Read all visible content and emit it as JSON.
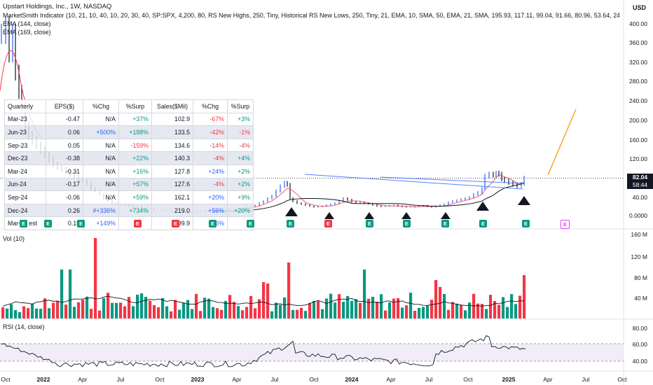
{
  "header": {
    "title": "Upstart Holdings, Inc., 1W, NASDAQ",
    "indicator": "MarketSmith Indicator (10, 21, 10, 40, 10, 20, 30, 40, SP:SPX, 4,200, 80, RS New Highs, 250, Tiny, Historical RS New Lows, 250, Tiny, 21, EMA, 10, SMA, 50, EMA, 21, SMA, 195.93, 117.11, 99.04, 91.66, 80.96, 53.64, 24.86, 9, 50, 65, 50, 65, normal, Ta",
    "ema144": "EMA (144, close)",
    "ema169": "EMA (169, close)"
  },
  "currency": "USD",
  "price_tag": {
    "price": "82.04",
    "countdown": "58:44"
  },
  "price_axis": [
    "400.00",
    "360.00",
    "320.00",
    "280.00",
    "240.00",
    "200.00",
    "160.00",
    "120.00",
    "80.00",
    "40.00",
    "0.0000"
  ],
  "volume_pane": {
    "title": "Vol (10)",
    "axis": [
      "160 M",
      "120 M",
      "80 M",
      "40 M"
    ]
  },
  "rsi_pane": {
    "title": "RSI (14, close)",
    "axis": [
      "80.00",
      "60.00",
      "40.00"
    ]
  },
  "time_axis": [
    {
      "label": "Oct",
      "bold": false
    },
    {
      "label": "2022",
      "bold": true
    },
    {
      "label": "Apr",
      "bold": false
    },
    {
      "label": "Jul",
      "bold": false
    },
    {
      "label": "Oct",
      "bold": false
    },
    {
      "label": "2023",
      "bold": true
    },
    {
      "label": "Apr",
      "bold": false
    },
    {
      "label": "Jul",
      "bold": false
    },
    {
      "label": "Oct",
      "bold": false
    },
    {
      "label": "2024",
      "bold": true
    },
    {
      "label": "Apr",
      "bold": false
    },
    {
      "label": "Jul",
      "bold": false
    },
    {
      "label": "Oct",
      "bold": false
    },
    {
      "label": "2025",
      "bold": true
    },
    {
      "label": "Apr",
      "bold": false
    },
    {
      "label": "Jul",
      "bold": false
    },
    {
      "label": "Oct",
      "bold": false
    }
  ],
  "fundamentals": {
    "headers": [
      "Quarterly",
      "EPS($)",
      "%Chg",
      "%Surp",
      "Sales($Mil)",
      "%Chg",
      "%Surp"
    ],
    "rows": [
      {
        "q": "Mar-23",
        "eps": "-0.47",
        "eps_chg": "N/A",
        "eps_chg_c": "plain",
        "eps_surp": "+37%",
        "eps_surp_c": "pos",
        "sales": "102.9",
        "sales_chg": "-67%",
        "sales_chg_c": "neg",
        "sales_surp": "+3%",
        "sales_surp_c": "pos"
      },
      {
        "q": "Jun-23",
        "eps": "0.06",
        "eps_chg": "+500%",
        "eps_chg_c": "blue",
        "eps_surp": "+188%",
        "eps_surp_c": "pos",
        "sales": "133.5",
        "sales_chg": "-42%",
        "sales_chg_c": "neg",
        "sales_surp": "-1%",
        "sales_surp_c": "neg"
      },
      {
        "q": "Sep-23",
        "eps": "0.05",
        "eps_chg": "N/A",
        "eps_chg_c": "plain",
        "eps_surp": "-159%",
        "eps_surp_c": "neg",
        "sales": "134.6",
        "sales_chg": "-14%",
        "sales_chg_c": "neg",
        "sales_surp": "-4%",
        "sales_surp_c": "neg"
      },
      {
        "q": "Dec-23",
        "eps": "-0.38",
        "eps_chg": "N/A",
        "eps_chg_c": "plain",
        "eps_surp": "+22%",
        "eps_surp_c": "pos",
        "sales": "140.3",
        "sales_chg": "-4%",
        "sales_chg_c": "neg",
        "sales_surp": "+4%",
        "sales_surp_c": "pos"
      },
      {
        "q": "Mar-24",
        "eps": "-0.31",
        "eps_chg": "N/A",
        "eps_chg_c": "plain",
        "eps_surp": "+16%",
        "eps_surp_c": "pos",
        "sales": "127.8",
        "sales_chg": "+24%",
        "sales_chg_c": "blue",
        "sales_surp": "+2%",
        "sales_surp_c": "pos"
      },
      {
        "q": "Jun-24",
        "eps": "-0.17",
        "eps_chg": "N/A",
        "eps_chg_c": "plain",
        "eps_surp": "+57%",
        "eps_surp_c": "pos",
        "sales": "127.6",
        "sales_chg": "-4%",
        "sales_chg_c": "neg",
        "sales_surp": "+2%",
        "sales_surp_c": "pos"
      },
      {
        "q": "Sep-24",
        "eps": "-0.06",
        "eps_chg": "N/A",
        "eps_chg_c": "plain",
        "eps_surp": "+59%",
        "eps_surp_c": "pos",
        "sales": "162.1",
        "sales_chg": "+20%",
        "sales_chg_c": "blue",
        "sales_surp": "+9%",
        "sales_surp_c": "pos"
      },
      {
        "q": "Dec-24",
        "eps": "0.26",
        "eps_chg": "#+336%",
        "eps_chg_c": "blue",
        "eps_surp": "+734%",
        "eps_surp_c": "pos",
        "sales": "219.0",
        "sales_chg": "+56%",
        "sales_chg_c": "blue",
        "sales_surp": "+20%",
        "sales_surp_c": "pos"
      },
      {
        "q": "Mar-25 est",
        "eps": "0.15",
        "eps_chg": "+149%",
        "eps_chg_c": "blue",
        "eps_surp": "",
        "eps_surp_c": "plain",
        "sales": "199.9",
        "sales_chg": "+56%",
        "sales_chg_c": "blue",
        "sales_surp": "-",
        "sales_surp_c": "plain"
      }
    ]
  },
  "earnings_markers": [
    {
      "label": "E",
      "color": "#089981"
    },
    {
      "label": "E",
      "color": "#089981"
    },
    {
      "label": "E",
      "color": "#089981"
    },
    {
      "label": "E",
      "color": "#f23645"
    },
    {
      "label": "E",
      "color": "#f23645"
    },
    {
      "label": "E",
      "color": "#089981"
    },
    {
      "label": "E",
      "color": "#089981"
    },
    {
      "label": "E",
      "color": "#089981"
    },
    {
      "label": "E",
      "color": "#f23645"
    },
    {
      "label": "E",
      "color": "#089981"
    },
    {
      "label": "E",
      "color": "#089981"
    },
    {
      "label": "E",
      "color": "#089981"
    },
    {
      "label": "E",
      "color": "#089981"
    },
    {
      "label": "E",
      "color": "#089981"
    },
    {
      "label": "E",
      "color": "#e040fb"
    }
  ],
  "colors": {
    "up": "#089981",
    "down": "#f23645",
    "blue": "#2962ff",
    "orange": "#f5a623",
    "rsi": "#131722",
    "band": "#ede7f6"
  }
}
